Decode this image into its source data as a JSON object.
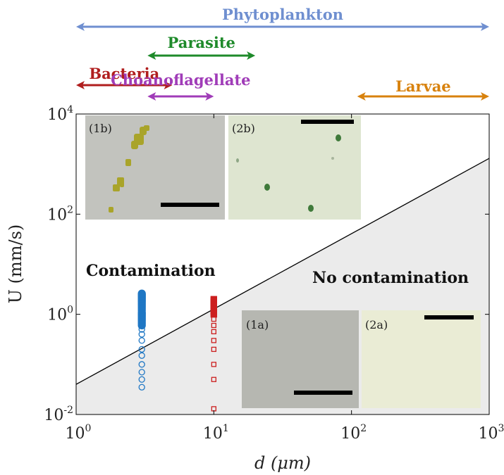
{
  "chart_data": {
    "type": "scatter",
    "xlabel": "d (μm)",
    "ylabel": "U (mm/s)",
    "x_scale": "log",
    "y_scale": "log",
    "xlim": [
      1,
      1000
    ],
    "ylim": [
      0.01,
      10000
    ],
    "x_ticks": [
      {
        "base": "10",
        "exp": "0",
        "value": 1
      },
      {
        "base": "10",
        "exp": "1",
        "value": 10
      },
      {
        "base": "10",
        "exp": "2",
        "value": 100
      },
      {
        "base": "10",
        "exp": "3",
        "value": 1000
      }
    ],
    "y_ticks": [
      {
        "base": "10",
        "exp": "-2",
        "value": 0.01
      },
      {
        "base": "10",
        "exp": "0",
        "value": 1
      },
      {
        "base": "10",
        "exp": "2",
        "value": 100
      },
      {
        "base": "10",
        "exp": "4",
        "value": 10000
      }
    ],
    "boundary_line": {
      "x": [
        1,
        1000
      ],
      "y": [
        0.04,
        1300
      ]
    },
    "region_labels": {
      "upper": "Contamination",
      "lower": "No contamination"
    },
    "series": [
      {
        "marker": "circle",
        "color": "#1f77c4",
        "filled": true,
        "x": 3,
        "y": [
          0.6,
          0.65,
          0.7,
          0.75,
          0.8,
          0.85,
          0.9,
          0.95,
          1.0,
          1.05,
          1.1,
          1.2,
          1.3,
          1.4,
          1.5,
          1.6,
          1.7,
          1.8,
          1.9,
          2.0,
          2.1,
          2.2,
          2.3,
          2.4,
          2.5,
          2.6
        ]
      },
      {
        "marker": "circle",
        "color": "#1f77c4",
        "filled": false,
        "x": 3,
        "y": [
          0.035,
          0.05,
          0.07,
          0.1,
          0.15,
          0.2,
          0.3,
          0.4,
          0.5
        ]
      },
      {
        "marker": "square",
        "color": "#cc1f1f",
        "filled": true,
        "x": 10,
        "y": [
          1.0,
          1.1,
          1.2,
          1.3,
          1.4,
          1.5,
          1.6,
          1.7,
          1.8,
          1.9,
          2.0
        ]
      },
      {
        "marker": "square",
        "color": "#cc1f1f",
        "filled": false,
        "x": 10,
        "y": [
          0.013,
          0.05,
          0.1,
          0.2,
          0.3,
          0.45,
          0.6,
          0.8
        ]
      }
    ],
    "size_ranges": [
      {
        "label": "Phytoplankton",
        "color": "#6f8fd0",
        "x": [
          1,
          1000
        ]
      },
      {
        "label": "Parasite",
        "color": "#1e8a2a",
        "x": [
          3.3,
          20
        ]
      },
      {
        "label": "Bacteria",
        "color": "#b01e1e",
        "x": [
          1,
          5
        ]
      },
      {
        "label": "Choanoflagellate",
        "color": "#a03cb8",
        "x": [
          3.3,
          10
        ]
      },
      {
        "label": "Larvae",
        "color": "#d8820e",
        "x": [
          110,
          1000
        ]
      }
    ],
    "insets": [
      {
        "label": "(1b)"
      },
      {
        "label": "(2b)"
      },
      {
        "label": "(1a)"
      },
      {
        "label": "(2a)"
      }
    ]
  }
}
